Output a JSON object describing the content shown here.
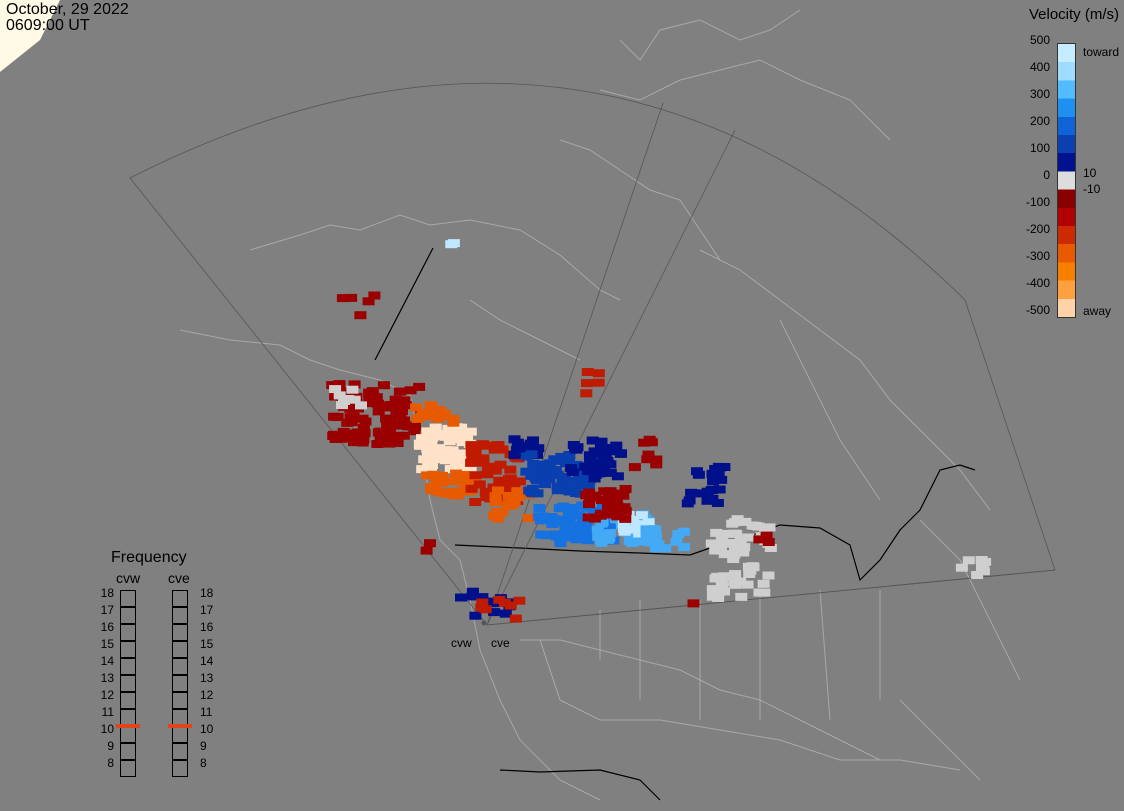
{
  "timestamp": {
    "date": "October, 29 2022",
    "time": "0609:00 UT"
  },
  "colorbar": {
    "title": "Velocity (m/s)",
    "ticks": [
      "500",
      "400",
      "300",
      "200",
      "100",
      "0",
      "-100",
      "-200",
      "-300",
      "-400",
      "-500"
    ],
    "toward_label": "toward",
    "away_label": "away",
    "pos_threshold": "10",
    "neg_threshold": "-10",
    "colors": [
      "#c6ecff",
      "#9fdcff",
      "#52bcff",
      "#1f8ff0",
      "#0f63d6",
      "#0a40b0",
      "#00128f",
      "#dddddd",
      "#8a0000",
      "#b30000",
      "#cc2a00",
      "#e85a00",
      "#f77f00",
      "#ff9f40",
      "#ffd2a8"
    ]
  },
  "frequency_panel": {
    "title": "Frequency",
    "radars": [
      "cvw",
      "cve"
    ],
    "scale": [
      "18",
      "17",
      "16",
      "15",
      "14",
      "13",
      "12",
      "11",
      "10",
      "9",
      "8"
    ],
    "current_mhz": [
      10.5,
      10.5
    ],
    "marker_color": "#e0441b"
  },
  "radar_sites": {
    "west": "cvw",
    "east": "cve"
  },
  "colors": {
    "background": "#808080",
    "map_lines": "#a8a8a8",
    "border": "#000000",
    "ground_scatter": "#d0d0d0"
  }
}
